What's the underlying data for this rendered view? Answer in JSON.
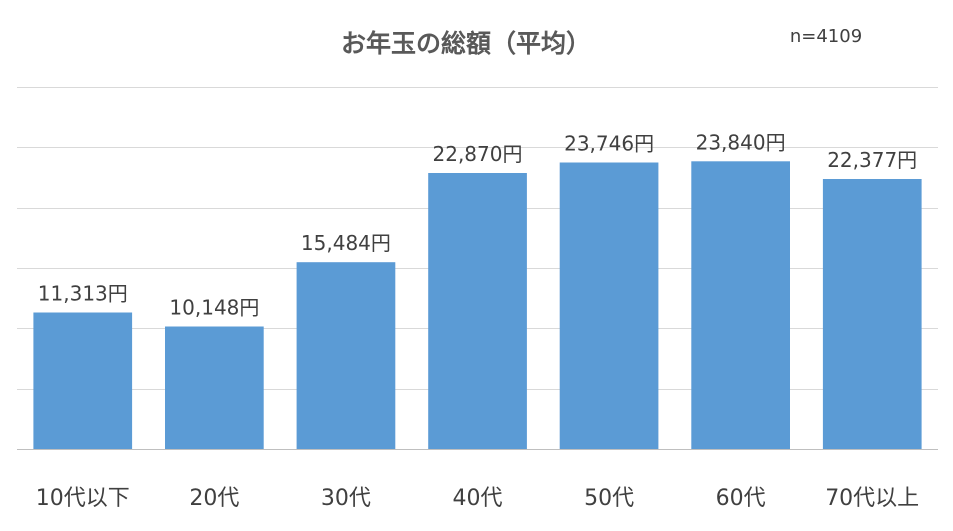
{
  "chart_data": {
    "type": "bar",
    "title": "お年玉の総額（平均）",
    "sample_size_label": "n=4109",
    "categories": [
      "10代以下",
      "20代",
      "30代",
      "40代",
      "50代",
      "60代",
      "70代以上"
    ],
    "values": [
      11313,
      10148,
      15484,
      22870,
      23746,
      23840,
      22377
    ],
    "data_labels": [
      "11,313円",
      "10,148円",
      "15,484円",
      "22,870円",
      "23,746円",
      "23,840円",
      "22,377円"
    ],
    "ylim": [
      0,
      30000
    ],
    "ytick_step": 5000,
    "show_y_tick_labels": false,
    "grid": true,
    "legend": "none",
    "colors": {
      "bar": "#5b9bd5",
      "grid": "#d9d9d9",
      "axis": "#bfbfbf",
      "text": "#404040",
      "title": "#595959"
    }
  }
}
